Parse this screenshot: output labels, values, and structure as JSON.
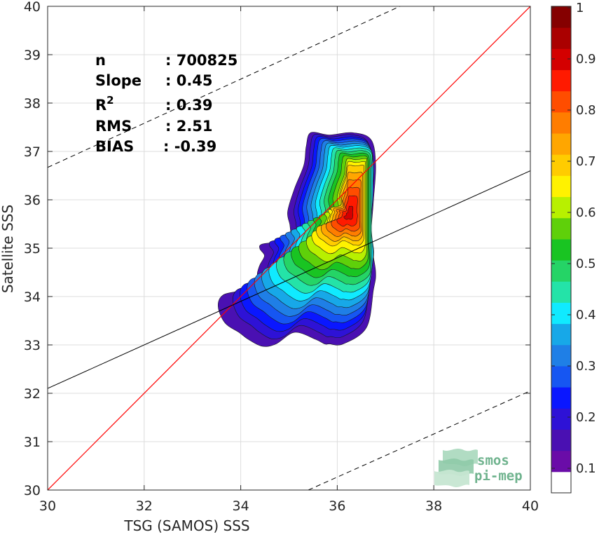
{
  "chart_data": {
    "type": "heatmap",
    "subtype": "filled-contour density scatter",
    "xlabel": "TSG (SAMOS) SSS",
    "ylabel": "Satellite SSS",
    "xlim": [
      30,
      40
    ],
    "ylim": [
      30,
      40
    ],
    "xticks": [
      "30",
      "32",
      "34",
      "36",
      "38",
      "40"
    ],
    "yticks": [
      "30",
      "31",
      "32",
      "33",
      "34",
      "35",
      "36",
      "37",
      "38",
      "39",
      "40"
    ],
    "grid": true,
    "stats": [
      {
        "label": "n",
        "sup": "",
        "value": ": 700825"
      },
      {
        "label": "Slope",
        "sup": "",
        "value": ": 0.45"
      },
      {
        "label": "R",
        "sup": "2",
        "value": ": 0.39"
      },
      {
        "label": "RMS",
        "sup": "",
        "value": ": 2.51"
      },
      {
        "label": "BIAS",
        "sup": "",
        "value": ": -0.39"
      }
    ],
    "lines": {
      "identity": {
        "slope": 1,
        "intercept": 0,
        "color": "#ff0000"
      },
      "regression": {
        "slope": 0.45,
        "x1": 30,
        "y1": 32.1,
        "x2": 40,
        "y2": 36.6,
        "color": "#000000"
      },
      "upper_bound": {
        "x1": 30,
        "y1": 36.67,
        "x2": 37.3,
        "y2": 40,
        "style": "dashed"
      },
      "lower_bound": {
        "x1": 35.4,
        "y1": 30,
        "x2": 40,
        "y2": 32.05,
        "style": "dashed"
      }
    },
    "density_peak": {
      "x": 36.25,
      "y": 35.7
    },
    "levels": [
      0.05,
      0.1,
      0.15,
      0.2,
      0.25,
      0.3,
      0.35,
      0.4,
      0.45,
      0.5,
      0.55,
      0.6,
      0.65,
      0.7,
      0.75,
      0.8,
      0.85,
      0.9,
      0.95
    ],
    "level_colors": [
      "#4a10b2",
      "#2e12d6",
      "#0a17ff",
      "#1656f2",
      "#1f7fe6",
      "#17a8e8",
      "#10eaff",
      "#24e3a8",
      "#25d466",
      "#19c422",
      "#5fd00a",
      "#b8f000",
      "#fff200",
      "#ffcc00",
      "#ffa600",
      "#ff7d00",
      "#ff4d00",
      "#ff1a00",
      "#d40000"
    ],
    "colorbar": {
      "range": [
        0,
        1
      ],
      "ticks": [
        "0.1",
        "0.2",
        "0.3",
        "0.4",
        "0.5",
        "0.6",
        "0.7",
        "0.8",
        "0.9",
        "1"
      ],
      "colors": [
        "#ffffff",
        "#6a0ca8",
        "#4a10b2",
        "#2e12d6",
        "#0a17ff",
        "#1656f2",
        "#1f7fe6",
        "#17a8e8",
        "#10eaff",
        "#24e3a8",
        "#25d466",
        "#19c422",
        "#5fd00a",
        "#b8f000",
        "#fff200",
        "#ffcc00",
        "#ffa600",
        "#ff7d00",
        "#ff4d00",
        "#ff1a00",
        "#d40000",
        "#aa0000",
        "#850000"
      ]
    }
  },
  "logo": {
    "line1": "smos",
    "line2": "pi-mep",
    "color": "#6fb38e"
  }
}
